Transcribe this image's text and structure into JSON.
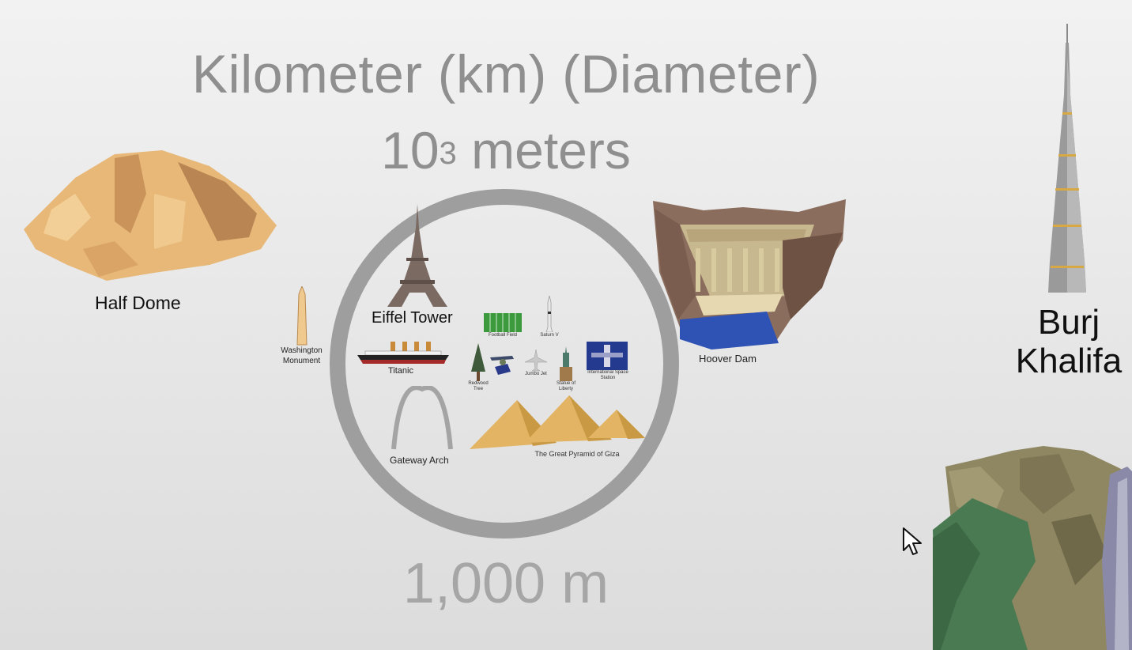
{
  "title": "Kilometer (km) (Diameter)",
  "power": {
    "base": "10",
    "exponent": "3",
    "unit": "meters"
  },
  "value_label": "1,000 m",
  "objects": {
    "half_dome": "Half Dome",
    "washington_monument": "Washington Monument",
    "eiffel_tower": "Eiffel Tower",
    "titanic": "Titanic",
    "football_field": "Football Field",
    "saturn_v": "Saturn V",
    "redwood_tree": "Redwood Tree",
    "jumbo_jet": "Jumbo Jet",
    "statue_of_liberty": "Statue of Liberty",
    "iss": "International Space Station",
    "gateway_arch": "Gateway Arch",
    "great_pyramid": "The Great Pyramid of Giza",
    "hoover_dam": "Hoover Dam",
    "burj_line1": "Burj",
    "burj_line2": "Khalifa"
  }
}
